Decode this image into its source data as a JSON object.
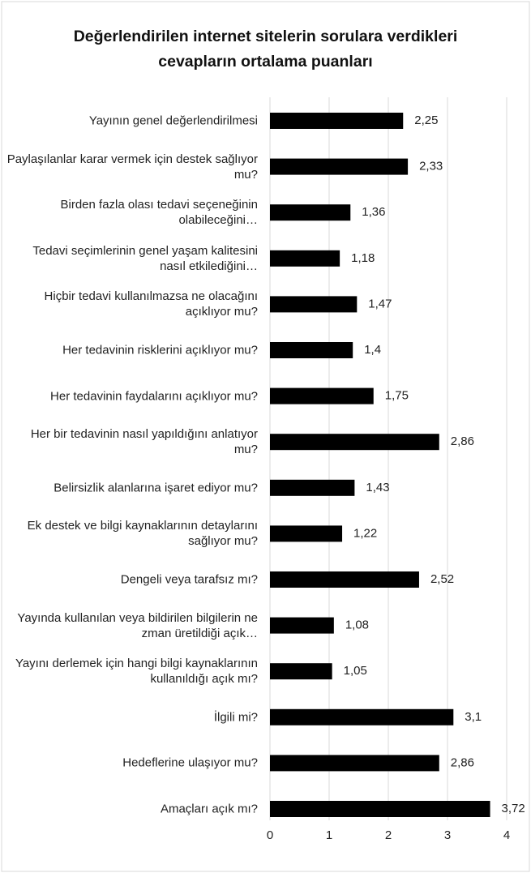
{
  "chart_data": {
    "type": "barh",
    "title": "Değerlendirilen internet sitelerin sorulara verdikleri cevapların ortalama puanları",
    "categories": [
      "Yayının genel değerlendirilmesi",
      "Paylaşılanlar karar vermek için destek sağlıyor mu?",
      "Birden fazla olası tedavi seçeneğinin olabileceğini…",
      "Tedavi seçimlerinin genel yaşam kalitesini nasıl etkilediğini…",
      "Hiçbir tedavi kullanılmazsa ne olacağını açıklıyor mu?",
      "Her tedavinin risklerini açıklıyor mu?",
      "Her tedavinin faydalarını açıklıyor mu?",
      "Her bir tedavinin nasıl yapıldığını anlatıyor mu?",
      "Belirsizlik alanlarına işaret ediyor mu?",
      "Ek destek ve bilgi kaynaklarının detaylarını sağlıyor mu?",
      "Dengeli veya tarafsız mı?",
      "Yayında kullanılan veya bildirilen bilgilerin ne zman üretildiği açık…",
      "Yayını derlemek için hangi bilgi kaynaklarının kullanıldığı açık mı?",
      "İlgili mi?",
      "Hedeflerine ulaşıyor mu?",
      "Amaçları açık mı?"
    ],
    "values": [
      2.25,
      2.33,
      1.36,
      1.18,
      1.47,
      1.4,
      1.75,
      2.86,
      1.43,
      1.22,
      2.52,
      1.08,
      1.05,
      3.1,
      2.86,
      3.72
    ],
    "value_labels": [
      "2,25",
      "2,33",
      "1,36",
      "1,18",
      "1,47",
      "1,4",
      "1,75",
      "2,86",
      "1,43",
      "1,22",
      "2,52",
      "1,08",
      "1,05",
      "3,1",
      "2,86",
      "3,72"
    ],
    "color": "#000000",
    "xlim": [
      0,
      4
    ],
    "xticks": [
      0,
      1,
      2,
      3,
      4
    ],
    "grid": true
  }
}
